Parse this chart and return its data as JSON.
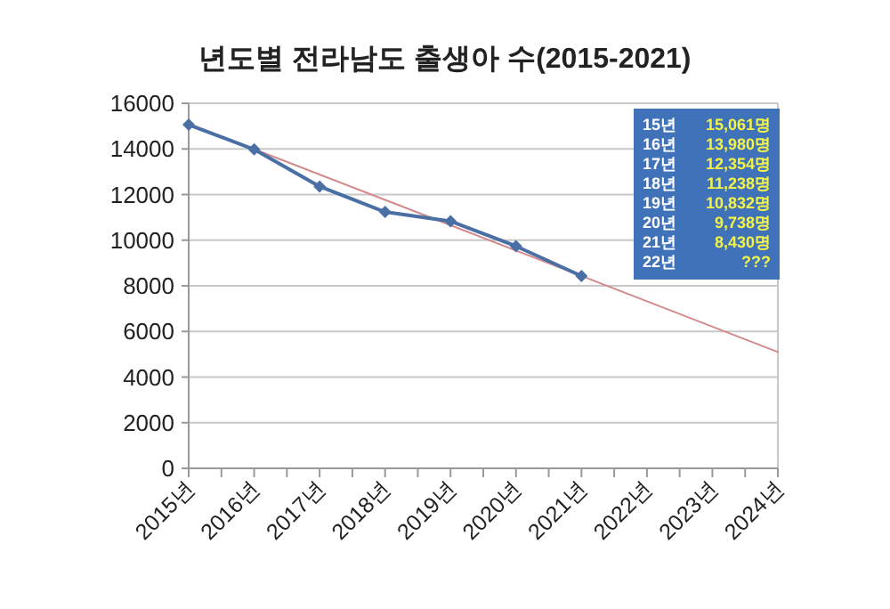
{
  "chart_data": {
    "type": "line",
    "title": "년도별 전라남도 출생아 수(2015-2021)",
    "categories": [
      "2015년",
      "2016년",
      "2017년",
      "2018년",
      "2019년",
      "2020년",
      "2021년",
      "2022년",
      "2023년",
      "2024년"
    ],
    "series": [
      {
        "color": "#4a6fa5",
        "values": [
          15061,
          13980,
          12354,
          11238,
          10832,
          9738,
          8430,
          null,
          null,
          null
        ],
        "marker": "diamond"
      },
      {
        "type": "line",
        "color": "#d48a8a",
        "x": [
          "2015년",
          "2024년"
        ],
        "values": [
          15100,
          5100
        ],
        "marker": "none"
      }
    ],
    "ylim": [
      0,
      16000
    ],
    "yticks": [
      0,
      2000,
      4000,
      6000,
      8000,
      10000,
      12000,
      14000,
      16000
    ],
    "grid": "y",
    "annotations": [
      "15년 15,061명",
      "16년 13,980명",
      "17년 12,354명",
      "18년 11,238명",
      "19년 10,832명",
      "20년 9,738명",
      "21년 8,430명",
      "22년 ???"
    ]
  }
}
